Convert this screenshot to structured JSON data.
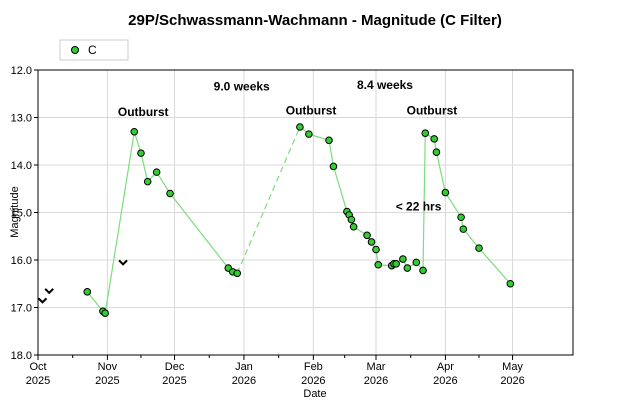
{
  "chart_data": {
    "type": "scatter",
    "title": "29P/Schwassmann-Wachmann - Magnitude (C Filter)",
    "xlabel": "Date",
    "ylabel": "Magnitude",
    "x_range": [
      "2025-10-01",
      "2026-05-28"
    ],
    "ylim": [
      18.0,
      12.0
    ],
    "y_inverted": true,
    "y_ticks": [
      "12.0",
      "13.0",
      "14.0",
      "15.0",
      "16.0",
      "17.0",
      "18.0"
    ],
    "x_ticks": [
      {
        "date": "2025-10-01",
        "line1": "Oct",
        "line2": "2025"
      },
      {
        "date": "2025-11-01",
        "line1": "Nov",
        "line2": "2025"
      },
      {
        "date": "2025-12-01",
        "line1": "Dec",
        "line2": "2025"
      },
      {
        "date": "2026-01-01",
        "line1": "Jan",
        "line2": "2026"
      },
      {
        "date": "2026-02-01",
        "line1": "Feb",
        "line2": "2026"
      },
      {
        "date": "2026-03-01",
        "line1": "Mar",
        "line2": "2026"
      },
      {
        "date": "2026-04-01",
        "line1": "Apr",
        "line2": "2026"
      },
      {
        "date": "2026-05-01",
        "line1": "May",
        "line2": "2026"
      }
    ],
    "grid": true,
    "legend_position": "top-left",
    "series": [
      {
        "name": "C",
        "color": "#33cc33",
        "line_color": "#7ddc7d",
        "points": [
          {
            "x": "2025-10-23",
            "y": 16.67
          },
          {
            "x": "2025-10-30",
            "y": 17.08
          },
          {
            "x": "2025-10-31",
            "y": 17.12
          },
          {
            "x": "2025-11-13",
            "y": 13.3
          },
          {
            "x": "2025-11-16",
            "y": 13.75
          },
          {
            "x": "2025-11-19",
            "y": 14.35
          },
          {
            "x": "2025-11-23",
            "y": 14.15
          },
          {
            "x": "2025-11-29",
            "y": 14.6
          },
          {
            "x": "2025-12-25",
            "y": 16.17
          },
          {
            "x": "2025-12-27",
            "y": 16.25
          },
          {
            "x": "2025-12-29",
            "y": 16.28
          },
          {
            "x": "2026-01-26",
            "y": 13.2
          },
          {
            "x": "2026-01-30",
            "y": 13.35
          },
          {
            "x": "2026-02-08",
            "y": 13.48
          },
          {
            "x": "2026-02-10",
            "y": 14.03
          },
          {
            "x": "2026-02-16",
            "y": 14.98
          },
          {
            "x": "2026-02-17",
            "y": 15.05
          },
          {
            "x": "2026-02-18",
            "y": 15.15
          },
          {
            "x": "2026-02-19",
            "y": 15.3
          },
          {
            "x": "2026-02-25",
            "y": 15.48
          },
          {
            "x": "2026-02-27",
            "y": 15.62
          },
          {
            "x": "2026-03-01",
            "y": 15.78
          },
          {
            "x": "2026-03-02",
            "y": 16.1
          },
          {
            "x": "2026-03-08",
            "y": 16.12
          },
          {
            "x": "2026-03-09",
            "y": 16.08
          },
          {
            "x": "2026-03-10",
            "y": 16.08
          },
          {
            "x": "2026-03-13",
            "y": 15.98
          },
          {
            "x": "2026-03-15",
            "y": 16.17
          },
          {
            "x": "2026-03-19",
            "y": 16.05
          },
          {
            "x": "2026-03-22",
            "y": 16.22
          },
          {
            "x": "2026-03-23",
            "y": 13.33
          },
          {
            "x": "2026-03-27",
            "y": 13.45
          },
          {
            "x": "2026-03-28",
            "y": 13.73
          },
          {
            "x": "2026-04-01",
            "y": 14.58
          },
          {
            "x": "2026-04-08",
            "y": 15.1
          },
          {
            "x": "2026-04-09",
            "y": 15.35
          },
          {
            "x": "2026-04-16",
            "y": 15.75
          },
          {
            "x": "2026-04-30",
            "y": 16.5
          }
        ],
        "segments": [
          {
            "from": 0,
            "to": 10,
            "style": "solid"
          },
          {
            "from": 10,
            "to": 11,
            "style": "dashed"
          },
          {
            "from": 11,
            "to": 37,
            "style": "solid"
          }
        ]
      }
    ],
    "limit_markers": [
      {
        "x": "2025-10-03",
        "y": 16.85
      },
      {
        "x": "2025-10-06",
        "y": 16.65
      },
      {
        "x": "2025-11-08",
        "y": 16.05
      }
    ],
    "annotations": [
      {
        "text": "Outburst",
        "x": "2025-11-17",
        "y": 12.88
      },
      {
        "text": "9.0 weeks",
        "x": "2025-12-31",
        "y": 12.35
      },
      {
        "text": "Outburst",
        "x": "2026-01-31",
        "y": 12.85
      },
      {
        "text": "8.4 weeks",
        "x": "2026-03-05",
        "y": 12.32
      },
      {
        "text": "Outburst",
        "x": "2026-03-26",
        "y": 12.85
      },
      {
        "text": "< 22 hrs",
        "x": "2026-03-20",
        "y": 14.87
      }
    ]
  }
}
